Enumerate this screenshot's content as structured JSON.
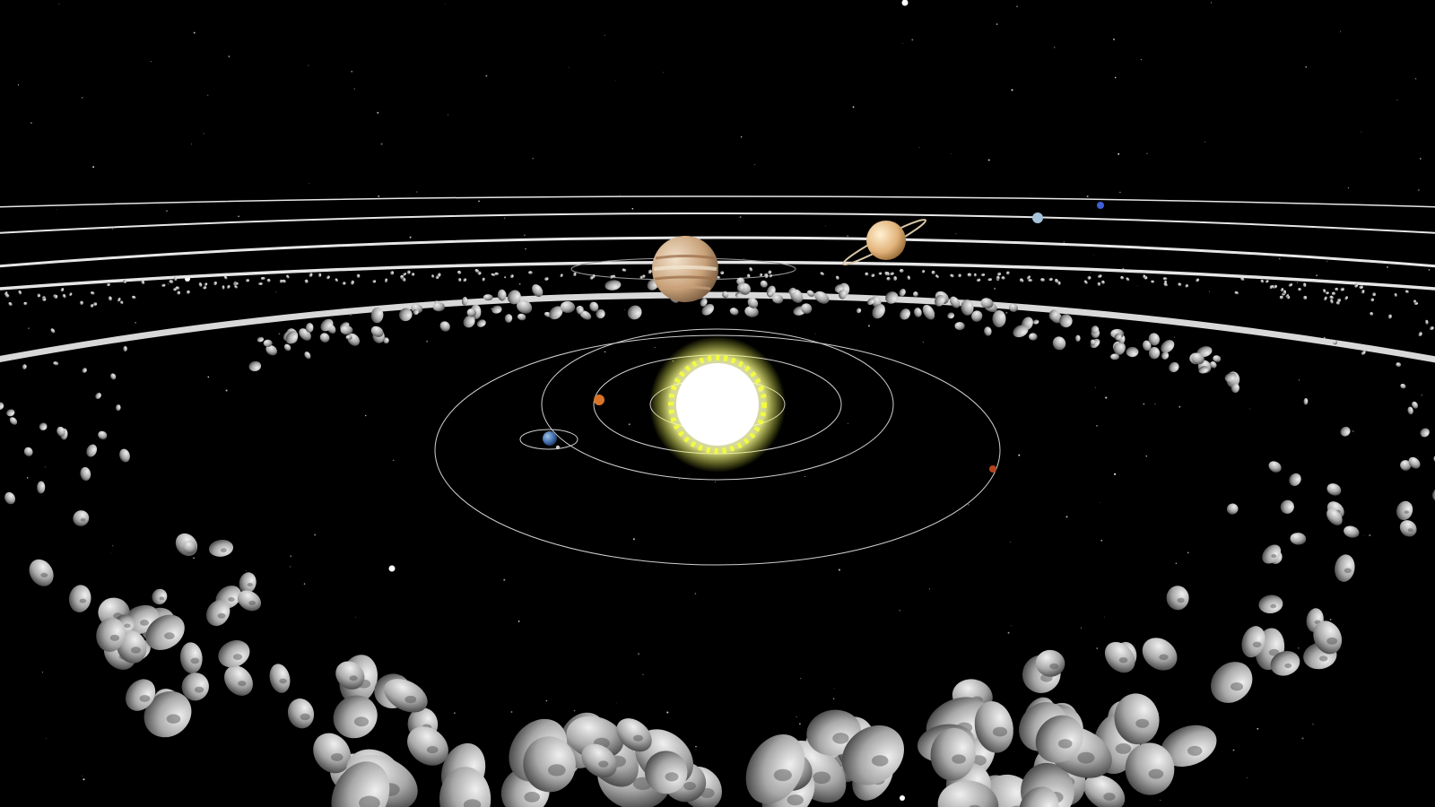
{
  "scene": {
    "type": "3D solar system view",
    "colors": {
      "background": "#000000",
      "orbit_line": "#e6e6e6",
      "star": "#ffffff",
      "sun_core": "#ffffff",
      "sun_glow": "#f6ff3a",
      "asteroid": "#b8b8b8",
      "mercury": "#a88a70",
      "venus": "#d7742a",
      "earth": "#3d6aa8",
      "moon": "#cccccc",
      "mars": "#b5441e",
      "jupiter": "#c9a27a",
      "saturn": "#e2b27a",
      "uranus": "#a7c3d9",
      "neptune": "#3f5fd8"
    },
    "bodies": [
      {
        "name": "sun",
        "icon": "sun-icon"
      },
      {
        "name": "mercury",
        "icon": "planet-icon"
      },
      {
        "name": "venus",
        "icon": "planet-icon"
      },
      {
        "name": "earth",
        "icon": "planet-icon"
      },
      {
        "name": "moon",
        "icon": "moon-icon"
      },
      {
        "name": "mars",
        "icon": "planet-icon"
      },
      {
        "name": "jupiter",
        "icon": "planet-icon"
      },
      {
        "name": "saturn",
        "icon": "ringed-planet-icon"
      },
      {
        "name": "uranus",
        "icon": "planet-icon"
      },
      {
        "name": "neptune",
        "icon": "planet-icon"
      }
    ],
    "features": [
      "orbit-lines",
      "asteroid-belt",
      "kuiper-belt",
      "starfield"
    ]
  }
}
